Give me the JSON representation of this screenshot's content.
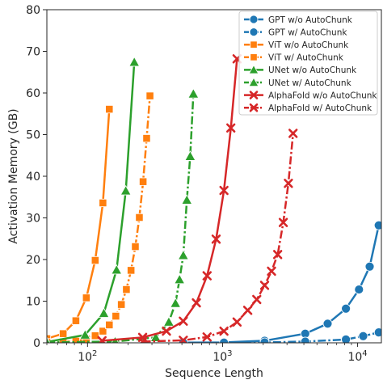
{
  "chart_data": {
    "type": "line",
    "title": "",
    "xlabel": "Sequence Length",
    "ylabel": "Activation Memory (GB)",
    "x_scale": "log",
    "xlim": [
      50,
      15000
    ],
    "ylim": [
      0,
      80
    ],
    "x_tick_labels": [
      {
        "value": 100,
        "base": "10",
        "exp": "2"
      },
      {
        "value": 1000,
        "base": "10",
        "exp": "3"
      },
      {
        "value": 10000,
        "base": "10",
        "exp": "4"
      }
    ],
    "y_ticks": [
      0,
      10,
      20,
      30,
      40,
      50,
      60,
      70,
      80
    ],
    "grid": false,
    "legend_position": "top-right",
    "series": [
      {
        "name": "GPT w/o AutoChunk",
        "color": "#1f77b4",
        "marker": "circle",
        "linestyle": "solid",
        "x": [
          512,
          1024,
          2048,
          4096,
          6000,
          8192,
          10240,
          12288,
          14336
        ],
        "y": [
          0.05,
          0.1,
          0.5,
          2.2,
          4.6,
          8.2,
          12.8,
          18.3,
          28.2
        ]
      },
      {
        "name": "GPT w/ AutoChunk",
        "color": "#1f77b4",
        "marker": "circle",
        "linestyle": "dashdot",
        "x": [
          512,
          1024,
          2048,
          4096,
          8192,
          11000,
          14336
        ],
        "y": [
          0.02,
          0.05,
          0.1,
          0.3,
          0.8,
          1.6,
          2.5
        ]
      },
      {
        "name": "ViT w/o AutoChunk",
        "color": "#ff7f0e",
        "marker": "square",
        "linestyle": "solid",
        "x": [
          50,
          66,
          82,
          98,
          114,
          130,
          145
        ],
        "y": [
          1.0,
          2.2,
          5.3,
          10.8,
          19.8,
          33.6,
          56.1
        ]
      },
      {
        "name": "ViT w/ AutoChunk",
        "color": "#ff7f0e",
        "marker": "square",
        "linestyle": "dashdot",
        "x": [
          50,
          66,
          82,
          98,
          114,
          130,
          145,
          162,
          178,
          194,
          210,
          226,
          242,
          258,
          274,
          290
        ],
        "y": [
          0.1,
          0.2,
          0.4,
          0.9,
          1.7,
          2.8,
          4.3,
          6.4,
          9.2,
          12.8,
          17.4,
          23.1,
          30.1,
          38.7,
          49.1,
          59.3
        ]
      },
      {
        "name": "UNet w/o AutoChunk",
        "color": "#2ca02c",
        "marker": "triangle",
        "linestyle": "solid",
        "x": [
          50,
          96,
          132,
          164,
          192,
          222
        ],
        "y": [
          0.2,
          1.9,
          7.1,
          17.5,
          36.5,
          67.4
        ]
      },
      {
        "name": "UNet w/ AutoChunk",
        "color": "#2ca02c",
        "marker": "triangle",
        "linestyle": "dashdot",
        "x": [
          50,
          160,
          320,
          400,
          448,
          480,
          512,
          544,
          576,
          608
        ],
        "y": [
          0.1,
          0.3,
          1.3,
          5.0,
          9.5,
          15.2,
          21.0,
          34.3,
          44.8,
          59.8
        ]
      },
      {
        "name": "AlphaFold w/o AutoChunk",
        "color": "#d62728",
        "marker": "x",
        "linestyle": "solid",
        "x": [
          128,
          256,
          384,
          512,
          640,
          768,
          896,
          1024,
          1152,
          1280
        ],
        "y": [
          0.5,
          1.3,
          2.8,
          5.2,
          9.6,
          16.1,
          24.9,
          36.6,
          51.6,
          68.2
        ]
      },
      {
        "name": "AlphaFold w/ AutoChunk",
        "color": "#d62728",
        "marker": "x",
        "linestyle": "dashdot",
        "x": [
          256,
          512,
          768,
          1024,
          1280,
          1536,
          1792,
          2048,
          2304,
          2560,
          2816,
          3072,
          3328
        ],
        "y": [
          0.3,
          0.6,
          1.4,
          2.8,
          5.0,
          7.8,
          10.4,
          13.8,
          17.2,
          21.2,
          28.9,
          38.3,
          50.3
        ]
      }
    ]
  }
}
